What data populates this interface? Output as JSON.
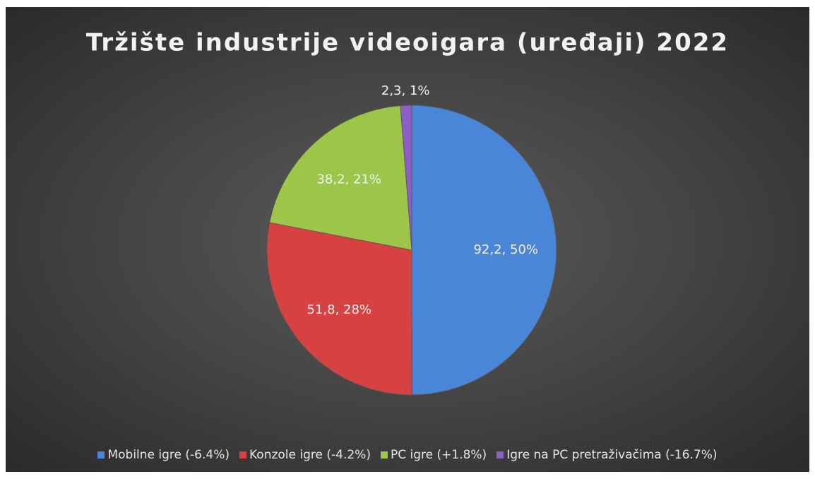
{
  "chart_data": {
    "type": "pie",
    "title": "Tržište industrije videoigara (uređaji) 2022",
    "categories": [
      "Mobilne igre (-6.4%)",
      "Konzole igre (-4.2%)",
      "PC igre (+1.8%)",
      "Igre na PC pretraživačima (-16.7%)"
    ],
    "values": [
      92.2,
      51.8,
      38.2,
      2.3
    ],
    "value_labels": [
      "92,2, 50%",
      "51,8, 28%",
      "38,2, 21%",
      "2,3, 1%"
    ],
    "colors": [
      "#4a86d8",
      "#d64242",
      "#9cc64a",
      "#8c5ec6"
    ],
    "legend": "bottom"
  }
}
